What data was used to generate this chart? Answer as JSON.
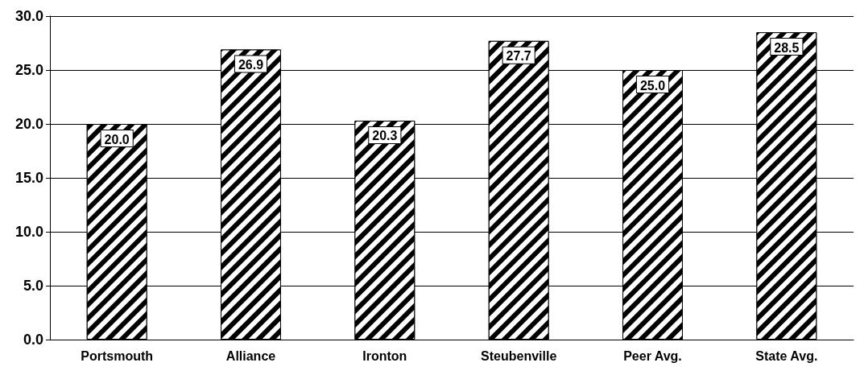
{
  "chart_data": {
    "type": "bar",
    "categories": [
      "Portsmouth",
      "Alliance",
      "Ironton",
      "Steubenville",
      "Peer Avg.",
      "State Avg."
    ],
    "values": [
      20.0,
      26.9,
      20.3,
      27.7,
      25.0,
      28.5
    ],
    "value_labels": [
      "20.0",
      "26.9",
      "20.3",
      "27.7",
      "25.0",
      "28.5"
    ],
    "color": "#000000",
    "ylim": [
      0,
      30
    ],
    "yticks": [
      {
        "value": 0,
        "label": "0.0"
      },
      {
        "value": 5,
        "label": "5.0"
      },
      {
        "value": 10,
        "label": "10.0"
      },
      {
        "value": 15,
        "label": "15.0"
      },
      {
        "value": 20,
        "label": "20.0"
      },
      {
        "value": 25,
        "label": "25.0"
      },
      {
        "value": 30,
        "label": "30.0"
      }
    ],
    "grid": "y"
  }
}
